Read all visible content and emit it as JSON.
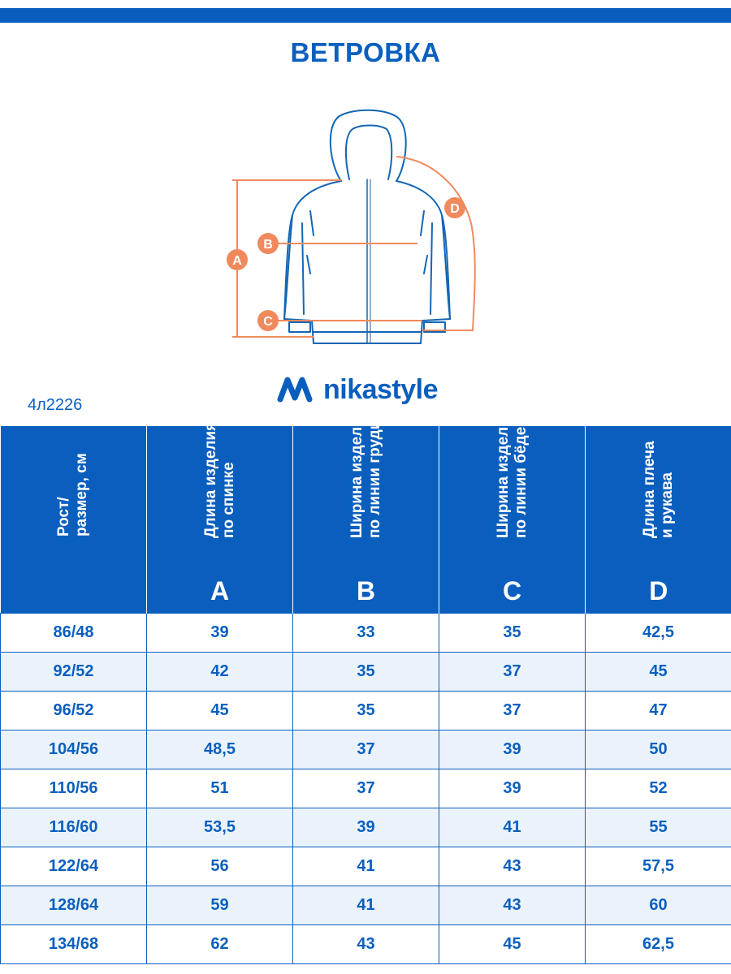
{
  "title": "ВЕТРОВКА",
  "diagram": {
    "markers": [
      "A",
      "B",
      "C",
      "D"
    ],
    "colors": {
      "outline": "#1466b4",
      "measure": "#f08a5d",
      "marker_text": "#ffffff"
    }
  },
  "brand": {
    "name": "nikastyle",
    "icon": "nikastyle-logo-icon"
  },
  "article": "4л2226",
  "table": {
    "columns": [
      {
        "label": "Рост/\nразмер, см",
        "letter": ""
      },
      {
        "label": "Длина изделия\nпо спинке",
        "letter": "A"
      },
      {
        "label": "Ширина изделия\nпо линии груди",
        "letter": "B"
      },
      {
        "label": "Ширина изделия\nпо линии бёдер",
        "letter": "C"
      },
      {
        "label": "Длина плеча\nи рукава",
        "letter": "D"
      }
    ],
    "rows": [
      [
        "86/48",
        "39",
        "33",
        "35",
        "42,5"
      ],
      [
        "92/52",
        "42",
        "35",
        "37",
        "45"
      ],
      [
        "96/52",
        "45",
        "35",
        "37",
        "47"
      ],
      [
        "104/56",
        "48,5",
        "37",
        "39",
        "50"
      ],
      [
        "110/56",
        "51",
        "37",
        "39",
        "52"
      ],
      [
        "116/60",
        "53,5",
        "39",
        "41",
        "55"
      ],
      [
        "122/64",
        "56",
        "41",
        "43",
        "57,5"
      ],
      [
        "128/64",
        "59",
        "41",
        "43",
        "60"
      ],
      [
        "134/68",
        "62",
        "43",
        "45",
        "62,5"
      ]
    ]
  },
  "colors": {
    "brand_blue": "#0a5fbe",
    "row_alt": "#eaf3fb"
  }
}
